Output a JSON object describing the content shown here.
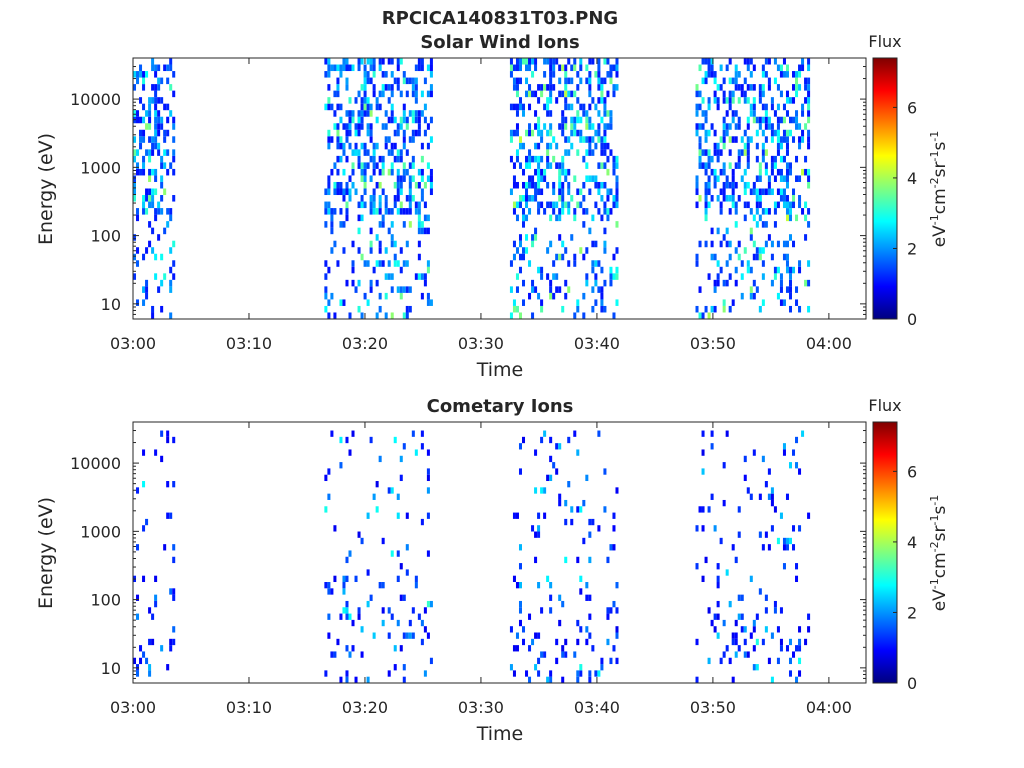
{
  "figure": {
    "title": "RPCICA140831T03.PNG"
  },
  "colors": {
    "axis": "#262626",
    "background": "#ffffff",
    "colormap": [
      "#00007f",
      "#0000ff",
      "#007fff",
      "#00ffff",
      "#7fff7f",
      "#ffff00",
      "#ff7f00",
      "#ff0000",
      "#7f0000"
    ]
  },
  "chart_data": [
    {
      "type": "heatmap",
      "title": "Solar Wind Ions",
      "xlabel": "Time",
      "ylabel": "Energy (eV)",
      "x_ticks": [
        "03:00",
        "03:10",
        "03:20",
        "03:30",
        "03:40",
        "03:50",
        "04:00"
      ],
      "x_tick_minutes": [
        0,
        10,
        20,
        30,
        40,
        50,
        60
      ],
      "xlim_minutes": [
        0,
        63.2
      ],
      "xlim": [
        "03:00",
        "04:03"
      ],
      "y_scale": "log",
      "y_ticks": [
        10,
        100,
        1000,
        10000
      ],
      "y_tick_labels": [
        "10",
        "100",
        "1000",
        "10000"
      ],
      "ylim": [
        6,
        40000
      ],
      "colorbar": {
        "title": "Flux",
        "label": "eV-1cm-2sr-1s-1",
        "ticks": [
          0,
          2,
          4,
          6
        ],
        "tick_labels": [
          "0",
          "2",
          "4",
          "6"
        ],
        "range": [
          0,
          7.4
        ],
        "colormap": "jet"
      },
      "grid": false,
      "data_bursts_minutes": [
        [
          0.0,
          3.5
        ],
        [
          16.5,
          25.8
        ],
        [
          32.5,
          41.6
        ],
        [
          48.5,
          58.2
        ]
      ],
      "energy_range_ev": [
        6,
        40000
      ],
      "flux_range": [
        1,
        4.3
      ],
      "flux_typical": 2.5
    },
    {
      "type": "heatmap",
      "title": "Cometary Ions",
      "xlabel": "Time",
      "ylabel": "Energy (eV)",
      "x_ticks": [
        "03:00",
        "03:10",
        "03:20",
        "03:30",
        "03:40",
        "03:50",
        "04:00"
      ],
      "x_tick_minutes": [
        0,
        10,
        20,
        30,
        40,
        50,
        60
      ],
      "xlim_minutes": [
        0,
        63.2
      ],
      "xlim": [
        "03:00",
        "04:03"
      ],
      "y_scale": "log",
      "y_ticks": [
        10,
        100,
        1000,
        10000
      ],
      "y_tick_labels": [
        "10",
        "100",
        "1000",
        "10000"
      ],
      "ylim": [
        6,
        40000
      ],
      "colorbar": {
        "title": "Flux",
        "label": "eV-1cm-2sr-1s-1",
        "ticks": [
          0,
          2,
          4,
          6
        ],
        "tick_labels": [
          "0",
          "2",
          "4",
          "6"
        ],
        "range": [
          0,
          7.4
        ],
        "colormap": "jet"
      },
      "grid": false,
      "data_bursts_minutes": [
        [
          0.0,
          3.5
        ],
        [
          16.5,
          25.8
        ],
        [
          32.5,
          41.6
        ],
        [
          48.5,
          58.2
        ]
      ],
      "energy_range_ev": [
        6,
        30000
      ],
      "flux_range": [
        0.8,
        3.2
      ],
      "flux_typical": 2.0
    }
  ]
}
